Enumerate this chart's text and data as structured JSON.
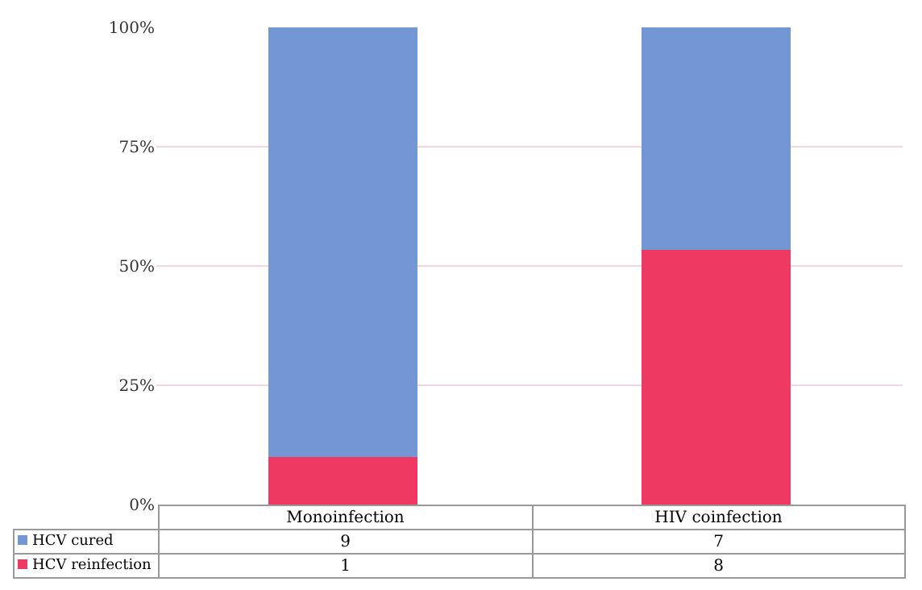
{
  "chart_data": {
    "type": "bar",
    "stacked": true,
    "categories": [
      "Monoinfection",
      "HIV coinfection"
    ],
    "series": [
      {
        "name": "HCV reinfection",
        "color": "#ee3a62",
        "values": [
          10,
          53.3
        ]
      },
      {
        "name": "HCV cured",
        "color": "#7396d5",
        "values": [
          90,
          46.7
        ]
      }
    ],
    "annotations": [
      "9",
      "7",
      "1",
      "8"
    ],
    "ylim": [
      0,
      100
    ],
    "yticks": [
      {
        "value": 0,
        "label": "0%"
      },
      {
        "value": 25,
        "label": "25%"
      },
      {
        "value": 50,
        "label": "50%"
      },
      {
        "value": 75,
        "label": "75%"
      },
      {
        "value": 100,
        "label": "100%"
      }
    ],
    "grid": "y",
    "legend": "bottom"
  }
}
